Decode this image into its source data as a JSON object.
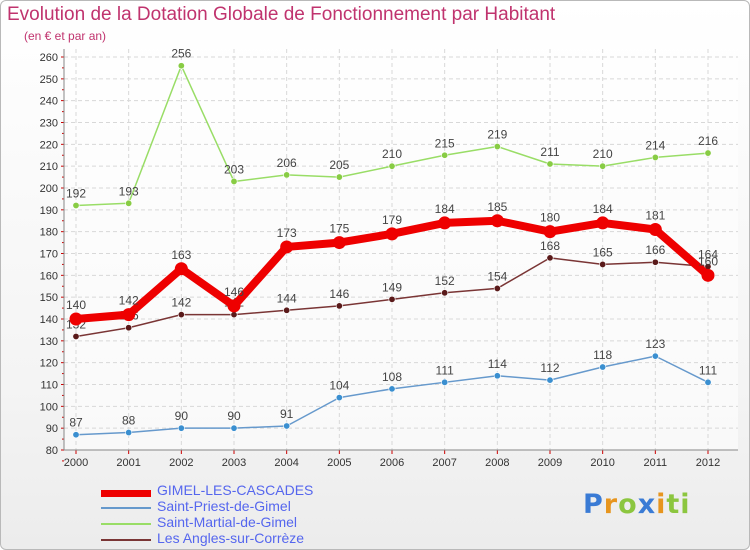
{
  "title": "Evolution de la Dotation Globale de Fonctionnement par Habitant",
  "subtitle": "(en € et par an)",
  "logo": {
    "letters": [
      "P",
      "r",
      "o",
      "x",
      "i",
      "t",
      "i"
    ],
    "colors": [
      "#3a7bd5",
      "#e7951e",
      "#8cc63f",
      "#3a7bd5",
      "#e7951e",
      "#8cc63f",
      "#8cc63f"
    ]
  },
  "chart_data": {
    "type": "line",
    "categories": [
      "2000",
      "2001",
      "2002",
      "2003",
      "2004",
      "2005",
      "2006",
      "2007",
      "2008",
      "2009",
      "2010",
      "2011",
      "2012"
    ],
    "ylim": [
      80,
      260
    ],
    "yticks": [
      "80",
      "90",
      "100",
      "110",
      "120",
      "130",
      "140",
      "150",
      "160",
      "170",
      "180",
      "190",
      "200",
      "210",
      "220",
      "230",
      "240",
      "250",
      "260"
    ],
    "grid": true,
    "legend_position": "bottom-left",
    "series": [
      {
        "name": "Saint-Priest-de-Gimel",
        "color": "#6699cc",
        "marker": "#3a8fd0",
        "values": [
          87,
          88,
          90,
          90,
          91,
          104,
          108,
          111,
          114,
          112,
          118,
          123,
          111
        ]
      },
      {
        "name": "Saint-Martial-de-Gimel",
        "color": "#99dd66",
        "marker": "#88cc44",
        "values": [
          192,
          193,
          256,
          203,
          206,
          205,
          210,
          215,
          219,
          211,
          210,
          214,
          216
        ]
      },
      {
        "name": "Les Angles-sur-Corrèze",
        "color": "#7a3535",
        "marker": "#5a1a1a",
        "values": [
          132,
          136,
          142,
          142,
          144,
          146,
          149,
          152,
          154,
          168,
          165,
          166,
          164
        ]
      },
      {
        "name": "GIMEL-LES-CASCADES",
        "color": "#ee0000",
        "marker": "#ee0000",
        "values": [
          140,
          142,
          163,
          146,
          173,
          175,
          179,
          184,
          185,
          180,
          184,
          181,
          160
        ]
      }
    ]
  },
  "legend": [
    {
      "label": "GIMEL-LES-CASCADES",
      "color": "#ee0000",
      "text_color": "#5566ee"
    },
    {
      "label": "Saint-Priest-de-Gimel",
      "color": "#6699cc",
      "text_color": "#5566ee"
    },
    {
      "label": "Saint-Martial-de-Gimel",
      "color": "#99dd66",
      "text_color": "#5566ee"
    },
    {
      "label": "Les Angles-sur-Corrèze",
      "color": "#7a3535",
      "text_color": "#5566ee"
    }
  ]
}
